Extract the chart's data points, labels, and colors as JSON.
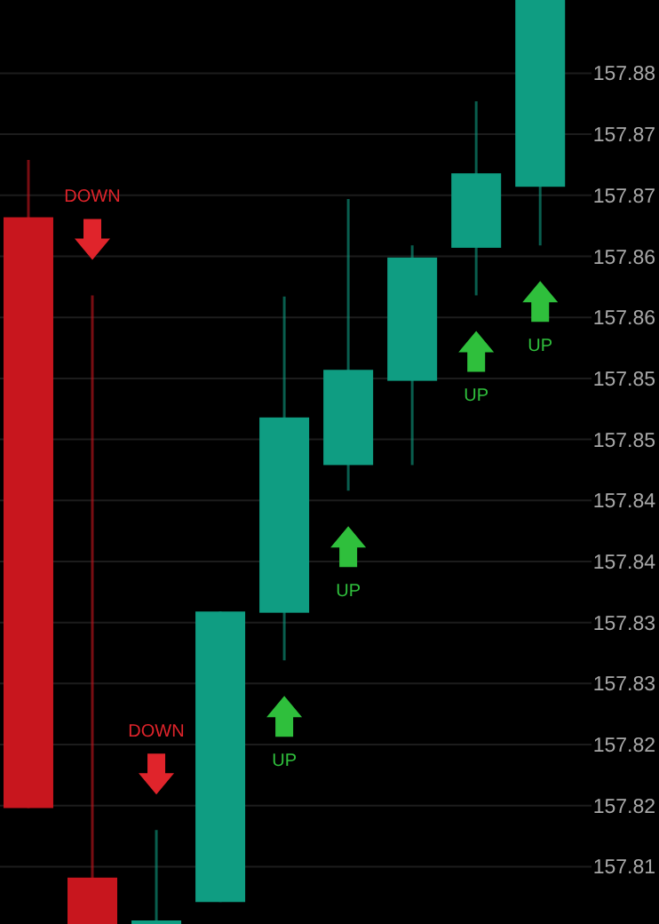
{
  "chart_data": {
    "type": "candlestick",
    "categories": [
      null,
      null,
      null,
      null,
      null,
      null,
      null,
      null,
      null
    ],
    "ohlc": [
      [
        157.8682,
        157.8729,
        157.8198,
        157.8198
      ],
      [
        157.8141,
        157.8618,
        157.8103,
        157.8103
      ],
      [
        157.8103,
        157.818,
        157.8103,
        157.8103
      ],
      [
        157.8121,
        157.8359,
        157.8121,
        157.8359
      ],
      [
        157.8358,
        157.8617,
        157.8319,
        157.8518
      ],
      [
        157.8479,
        157.8697,
        157.8458,
        157.8557
      ],
      [
        157.8548,
        157.8659,
        157.8479,
        157.8649
      ],
      [
        157.8657,
        157.8777,
        157.8618,
        157.8718
      ],
      [
        157.8707,
        157.886,
        157.8659,
        157.886
      ]
    ],
    "colors": [
      "#c8161e",
      "#c8161e",
      "#0f9d82",
      "#0f9d82",
      "#0f9d82",
      "#0f9d82",
      "#0f9d82",
      "#0f9d82",
      "#0f9d82"
    ],
    "value_labels": [
      null,
      "DOWN",
      "DOWN",
      null,
      "UP",
      "UP",
      null,
      "UP",
      "UP"
    ],
    "ylim": [
      157.8103,
      157.886
    ],
    "yticks": [
      {
        "value": 157.815,
        "label": "157.81"
      },
      {
        "value": 157.82,
        "label": "157.82"
      },
      {
        "value": 157.825,
        "label": "157.82"
      },
      {
        "value": 157.83,
        "label": "157.83"
      },
      {
        "value": 157.835,
        "label": "157.83"
      },
      {
        "value": 157.84,
        "label": "157.84"
      },
      {
        "value": 157.845,
        "label": "157.84"
      },
      {
        "value": 157.85,
        "label": "157.85"
      },
      {
        "value": 157.855,
        "label": "157.85"
      },
      {
        "value": 157.86,
        "label": "157.86"
      },
      {
        "value": 157.865,
        "label": "157.86"
      },
      {
        "value": 157.87,
        "label": "157.87"
      },
      {
        "value": 157.875,
        "label": "157.87"
      },
      {
        "value": 157.88,
        "label": "157.88"
      }
    ],
    "tick_labels": "y",
    "grid": "y"
  }
}
